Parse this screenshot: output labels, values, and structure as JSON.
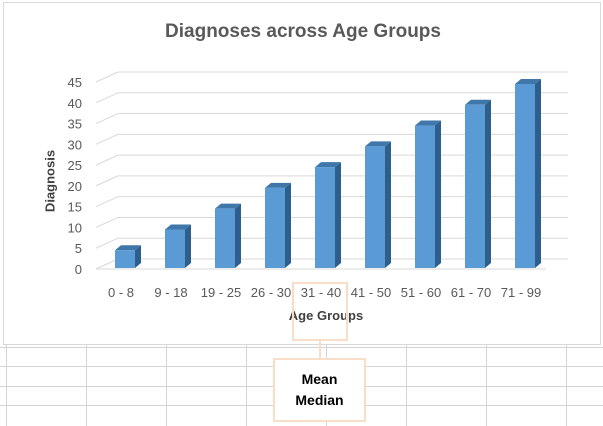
{
  "chart_data": {
    "type": "bar",
    "title": "Diagnoses across Age Groups",
    "xlabel": "Age Groups",
    "ylabel": "Diagnosis",
    "categories": [
      "0 - 8",
      "9 - 18",
      "19 - 25",
      "26 - 30",
      "31 - 40",
      "41 - 50",
      "51 - 60",
      "61 - 70",
      "71 - 99"
    ],
    "values": [
      5,
      10,
      15,
      20,
      25,
      30,
      35,
      40,
      45
    ],
    "ylim": [
      0,
      45
    ],
    "yticks": [
      0,
      5,
      10,
      15,
      20,
      25,
      30,
      35,
      40,
      45
    ],
    "grid": true,
    "legend": "none",
    "colors": {
      "bar_front": "#5b9bd5",
      "bar_side": "#2e5f8c",
      "bar_top": "#3f77aa",
      "grid": "#d9d9d9"
    }
  },
  "callout": {
    "line1": "Mean",
    "line2": "Median",
    "border_color": "#f8ddc9"
  }
}
